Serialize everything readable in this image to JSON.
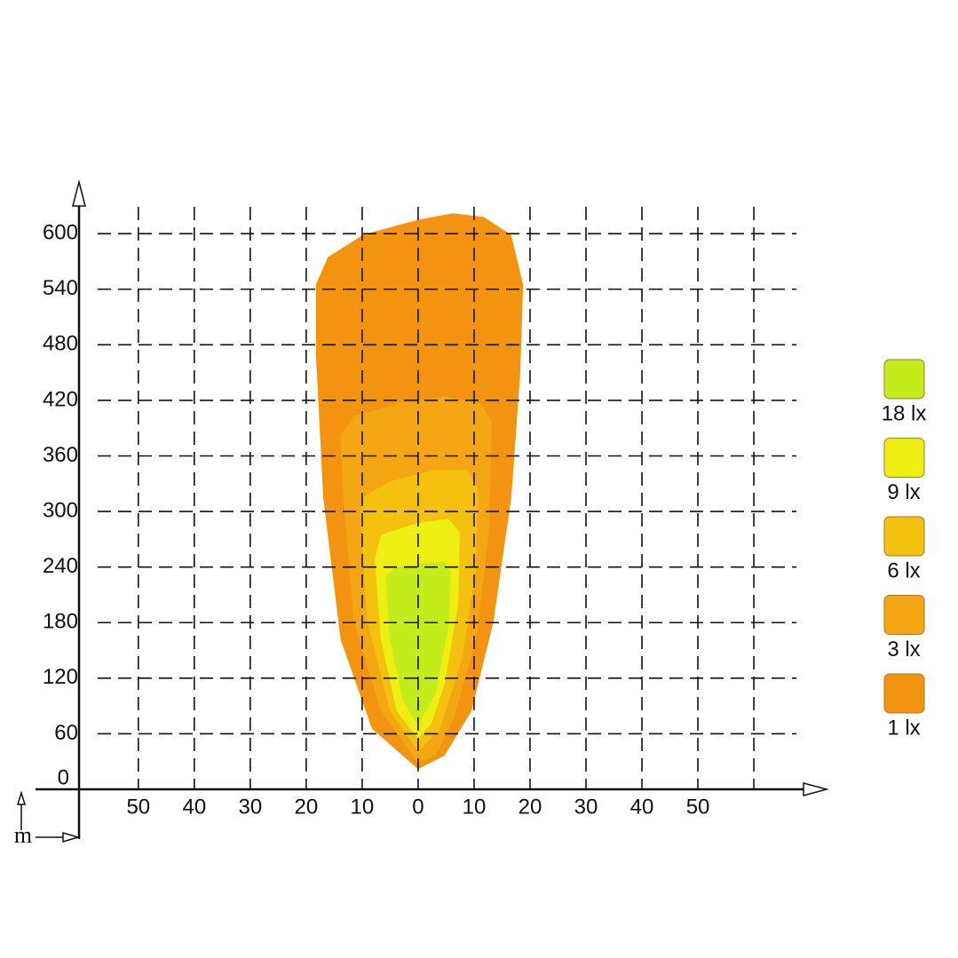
{
  "chart_data": {
    "type": "contour",
    "unit_label": "m",
    "xlim": [
      -60.6,
      73
    ],
    "ylim": [
      0,
      650
    ],
    "xticks": [
      {
        "value": -50,
        "label": "50"
      },
      {
        "value": -40,
        "label": "40"
      },
      {
        "value": -30,
        "label": "30"
      },
      {
        "value": -20,
        "label": "20"
      },
      {
        "value": -10,
        "label": "10"
      },
      0,
      10,
      20,
      30,
      40,
      50,
      {
        "value": 60,
        "label": null
      }
    ],
    "yticks": [
      0,
      60,
      120,
      180,
      240,
      300,
      360,
      420,
      480,
      540,
      600
    ],
    "grid": true,
    "legend": "right",
    "series": [
      {
        "name": "1 lx",
        "color": "#f39410",
        "x": [
          0,
          -8.1,
          -13.7,
          -16.8,
          -18.1,
          -18.1,
          -16,
          -9.7,
          0,
          6.2,
          11.7,
          16.5,
          18.6,
          18.1,
          16.5,
          13.3,
          9.4,
          4.6
        ],
        "y": [
          23,
          66,
          162,
          315,
          469,
          545,
          574,
          598,
          614,
          621,
          617,
          598,
          545,
          450,
          315,
          181,
          85,
          37
        ]
      },
      {
        "name": "3 lx",
        "color": "#f5a613",
        "x": [
          0,
          -6.5,
          -11.3,
          -13.2,
          -13.7,
          -11.3,
          -3.3,
          4.6,
          11,
          13,
          12.5,
          10.2,
          6.2,
          3
        ],
        "y": [
          30,
          85,
          181,
          315,
          382,
          402,
          416,
          423,
          416,
          397,
          277,
          162,
          76,
          37
        ]
      },
      {
        "name": "6 lx",
        "color": "#f4c10e",
        "x": [
          0,
          -4.9,
          -8.9,
          -10.2,
          -9.7,
          -4.9,
          3,
          8.6,
          10.5,
          10.2,
          7.8,
          3.8
        ],
        "y": [
          42,
          85,
          181,
          296,
          315,
          332,
          344,
          344,
          325,
          239,
          143,
          66
        ]
      },
      {
        "name": "9 lx",
        "color": "#eeee12",
        "x": [
          0,
          -3.7,
          -6.5,
          -7.6,
          -6.5,
          0,
          5.4,
          7.3,
          7,
          4.6,
          2.2
        ],
        "y": [
          56,
          85,
          162,
          248,
          274,
          287,
          291,
          277,
          200,
          114,
          71
        ]
      },
      {
        "name": "18 lx",
        "color": "#c4ec1b",
        "x": [
          0,
          -2.5,
          -4.9,
          -5.6,
          -4.1,
          1.4,
          4.6,
          5.7,
          5.4,
          3
        ],
        "y": [
          71,
          95,
          162,
          229,
          239,
          243,
          245,
          234,
          181,
          104
        ]
      }
    ]
  }
}
